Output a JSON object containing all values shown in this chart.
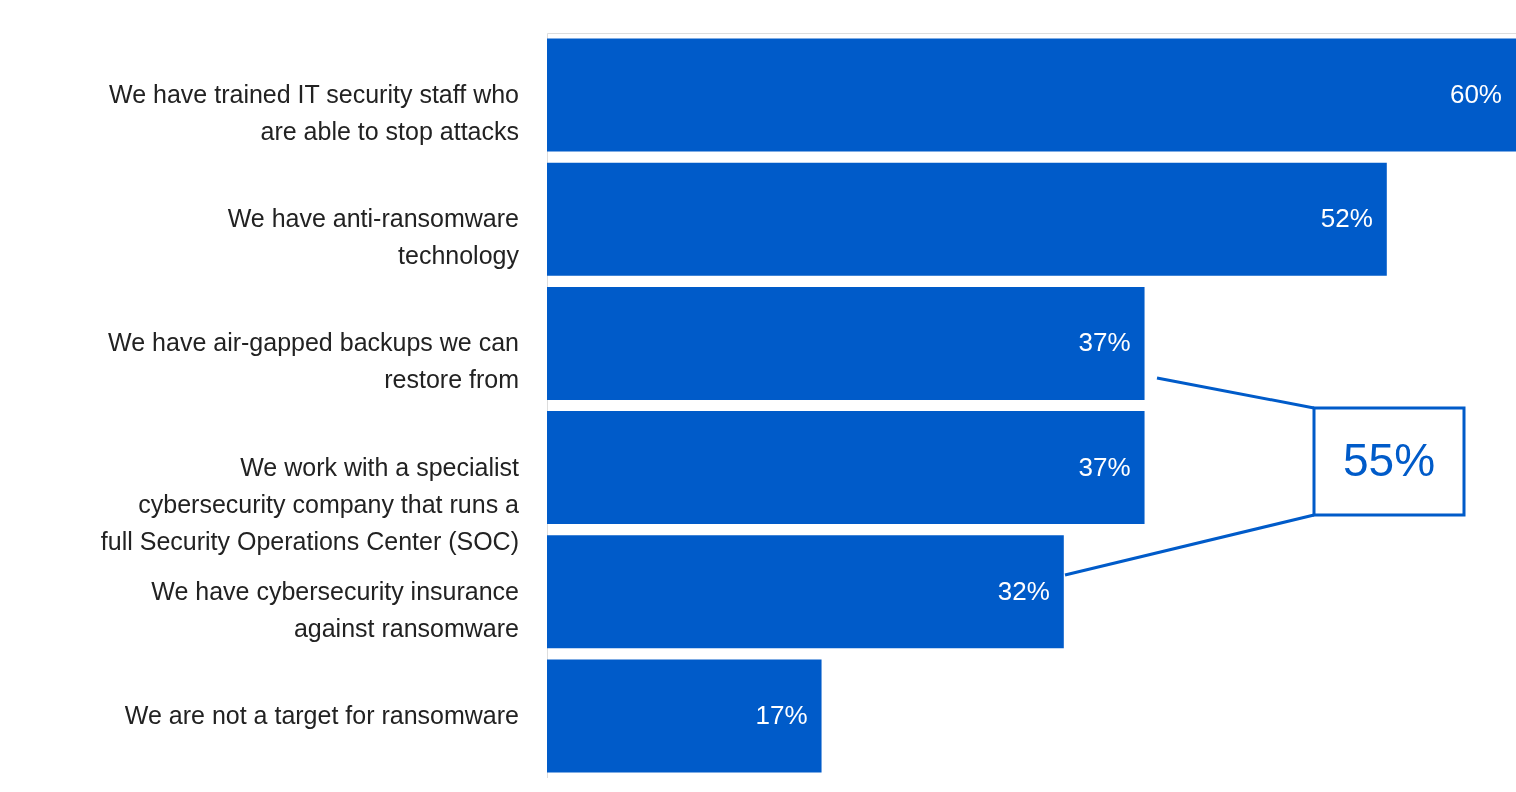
{
  "chart_data": {
    "type": "bar",
    "orientation": "horizontal",
    "categories": [
      "We have trained IT security staff who are able to stop attacks",
      "We have anti-ransomware technology",
      "We have air-gapped backups we can restore from",
      "We work with a specialist cybersecurity company that runs a full Security Operations Center (SOC)",
      "We have cybersecurity insurance against ransomware",
      "We are not a target for ransomware"
    ],
    "values": [
      60,
      52,
      37,
      37,
      32,
      17
    ],
    "value_labels": [
      "60%",
      "52%",
      "37%",
      "37%",
      "32%",
      "17%"
    ],
    "color": "#005bc9",
    "annotations": [
      "55%"
    ]
  }
}
